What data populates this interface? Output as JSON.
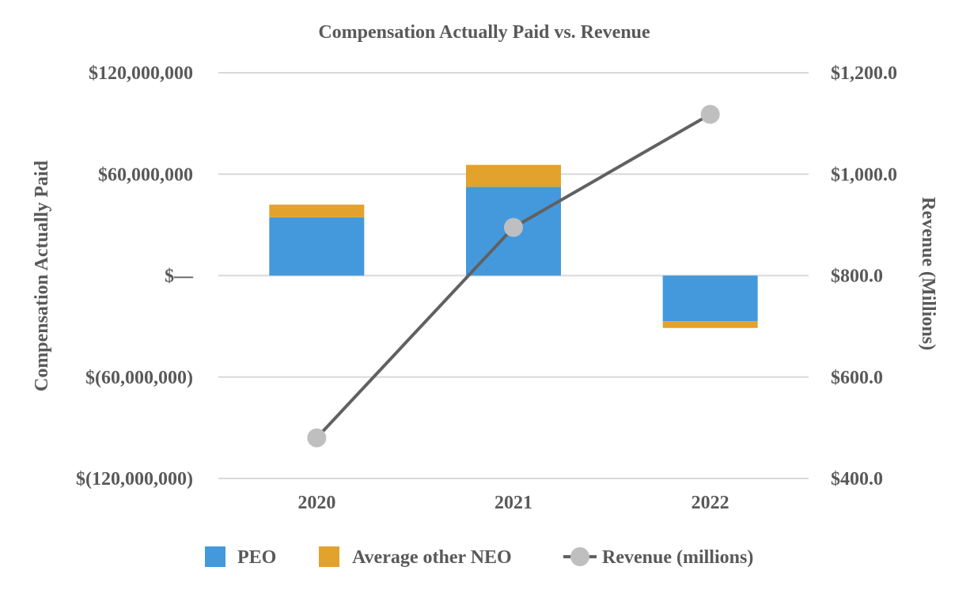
{
  "chart_data": {
    "type": "bar",
    "stacked": true,
    "title": "Compensation Actually Paid vs. Revenue",
    "categories": [
      "2020",
      "2021",
      "2022"
    ],
    "ylabel": "Compensation Actually Paid",
    "ylabel_right": "Revenue (Millions)",
    "ylim": [
      -120000000,
      120000000
    ],
    "ylim_right": [
      400,
      1200
    ],
    "yticks": [
      120000000,
      60000000,
      0,
      -60000000,
      -120000000
    ],
    "ytick_labels": [
      "$120,000,000",
      "$60,000,000",
      "$—",
      "$(60,000,000)",
      "$(120,000,000)"
    ],
    "yticks_right": [
      1200,
      1000,
      800,
      600,
      400
    ],
    "ytick_labels_right": [
      "$1,200.0",
      "$1,000.0",
      "$800.0",
      "$600.0",
      "$400.0"
    ],
    "grid": true,
    "legend_position": "bottom",
    "series": [
      {
        "name": "PEO",
        "type": "bar",
        "axis": "left",
        "color": "#4499DD",
        "values": [
          34500000,
          52500000,
          -27000000
        ]
      },
      {
        "name": "Average other NEO",
        "type": "bar",
        "axis": "left",
        "color": "#E3A22B",
        "values": [
          7500000,
          13000000,
          -4000000
        ]
      },
      {
        "name": "Revenue (millions)",
        "type": "line",
        "axis": "right",
        "color": "#616161",
        "marker_color": "#BFBFBF",
        "values": [
          480,
          895,
          1118
        ]
      }
    ]
  }
}
